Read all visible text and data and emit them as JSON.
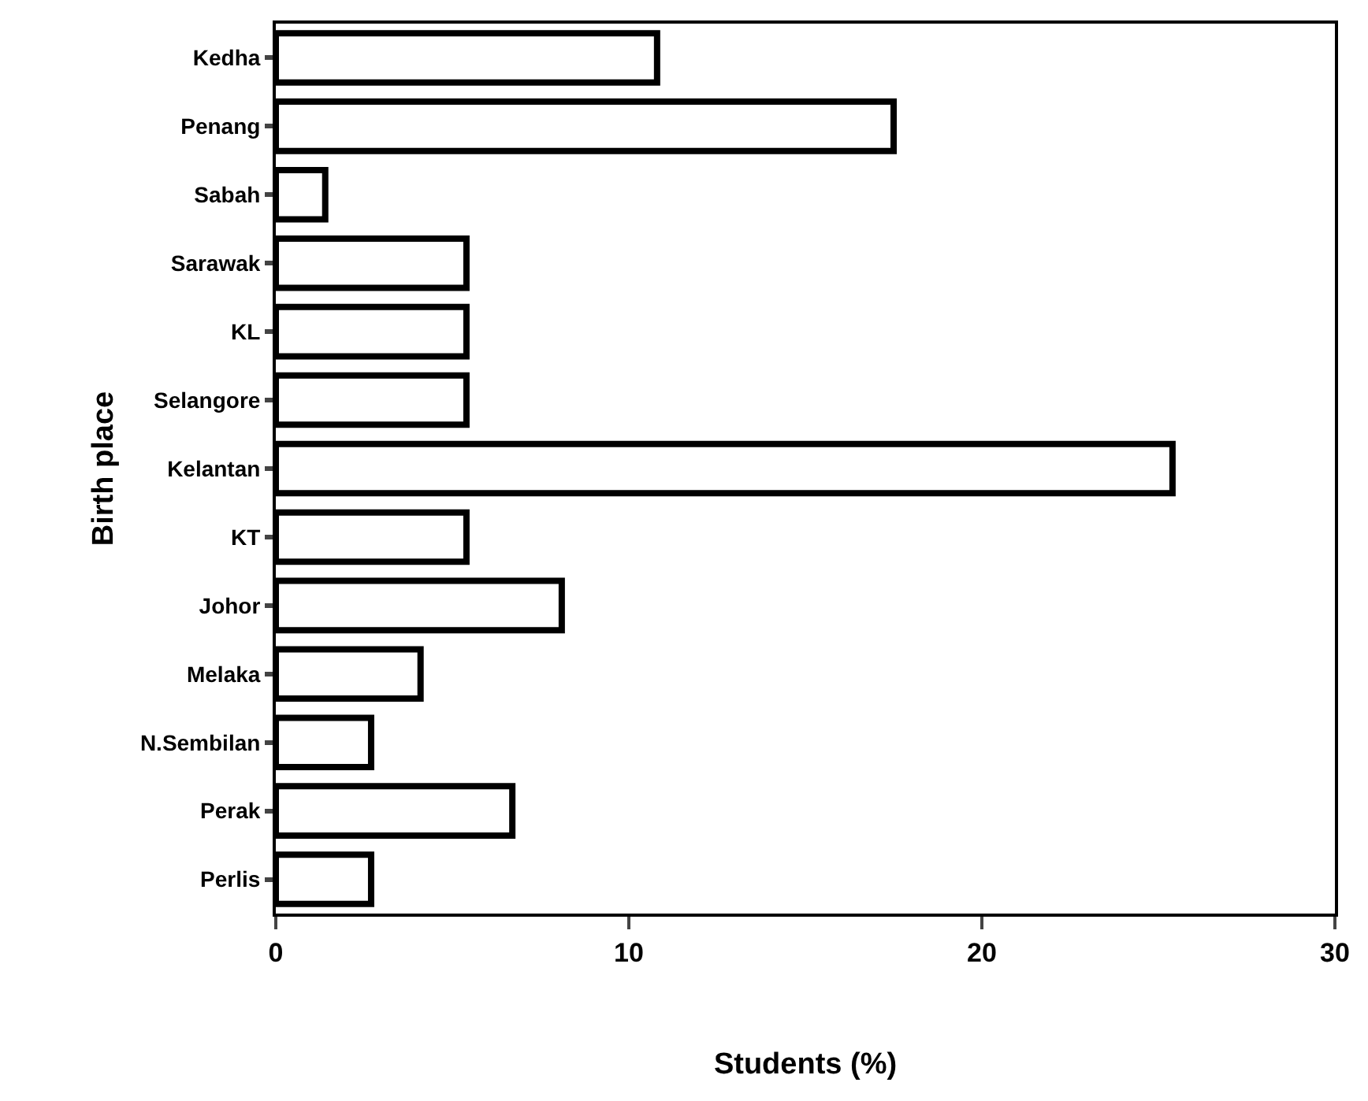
{
  "chart_data": {
    "type": "bar",
    "orientation": "horizontal",
    "xlabel": "Students (%)",
    "ylabel": "Birth place",
    "categories": [
      "Kedha",
      "Penang",
      "Sabah",
      "Sarawak",
      "KL",
      "Selangore",
      "Kelantan",
      "KT",
      "Johor",
      "Melaka",
      "N.Sembilan",
      "Perak",
      "Perlis"
    ],
    "values": [
      10.8,
      17.5,
      1.4,
      5.4,
      5.4,
      5.4,
      25.4,
      5.4,
      8.1,
      4.1,
      2.7,
      6.7,
      2.7
    ],
    "color": "#ffffff",
    "xlim": [
      0,
      30
    ],
    "xticks": [
      0,
      10,
      20,
      30
    ],
    "grid": false
  }
}
